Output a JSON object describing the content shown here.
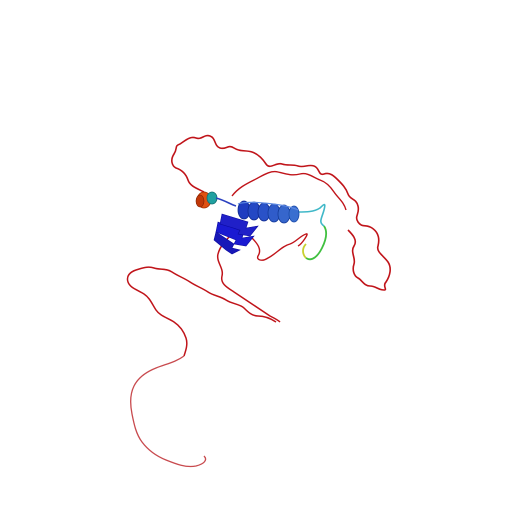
{
  "image": {
    "subject": "protein-structure-cartoon",
    "background_color": "#ffffff",
    "colors": {
      "disordered_loop": "#c0141a",
      "disordered_loop_light": "#c84a4e",
      "helix": "#2850c8",
      "helix_light": "#3a6fd0",
      "sheet": "#1a1ad2",
      "short_helix_orange": "#e05010",
      "short_helix_teal": "#20a0a0",
      "loop_cyan": "#40b8c8",
      "loop_green": "#40c040",
      "loop_yellow": "#c8d030"
    }
  }
}
